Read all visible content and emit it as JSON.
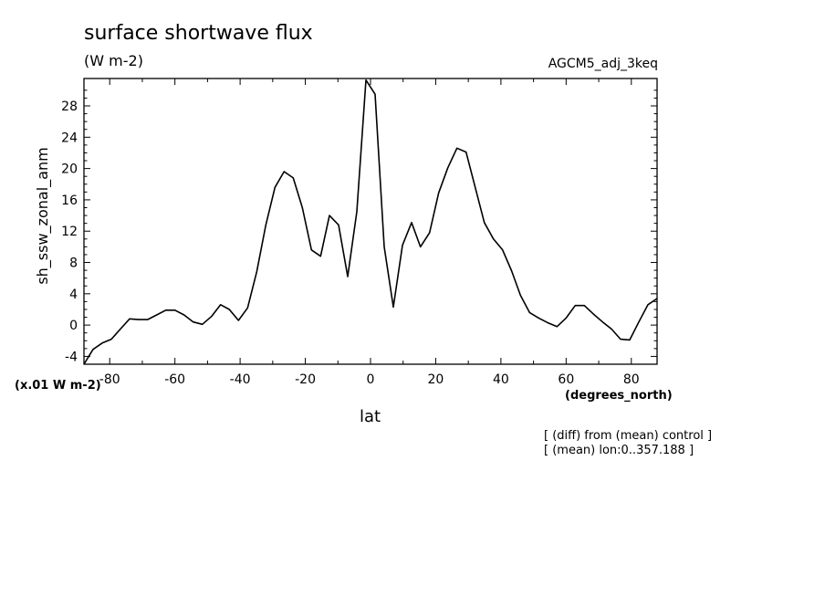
{
  "header": {
    "title": "surface shortwave flux",
    "units": "(W m-2)",
    "run_label": "AGCM5_adj_3keq"
  },
  "axes": {
    "y_scale_label": "(x.01 W m-2)",
    "x_unit_label": "(degrees_north)"
  },
  "notes": [
    "[ (diff) from (mean) control ]",
    "[ (mean) lon:0..357.188 ]"
  ],
  "chart_data": {
    "type": "line",
    "title": "surface shortwave flux",
    "xlabel": "lat",
    "ylabel": "sh_ssw_zonal_anm",
    "xlim": [
      -87.9,
      87.9
    ],
    "ylim": [
      -5,
      31.5
    ],
    "x_ticks": [
      -80,
      -60,
      -40,
      -20,
      0,
      20,
      40,
      60,
      80
    ],
    "x_tick_labels": [
      "-80",
      "-60",
      "-40",
      "-20",
      "0",
      "20",
      "40",
      "60",
      "80"
    ],
    "y_ticks": [
      -4,
      0,
      4,
      8,
      12,
      16,
      20,
      24,
      28
    ],
    "y_tick_labels": [
      "-4",
      "0",
      "4",
      "8",
      "12",
      "16",
      "20",
      "24",
      "28"
    ],
    "grid": false,
    "line_color": "#000000",
    "series": [
      {
        "x": [
          -87.9,
          -85.1,
          -82.3,
          -79.5,
          -76.7,
          -73.9,
          -71.2,
          -68.4,
          -65.6,
          -62.8,
          -60.0,
          -57.2,
          -54.4,
          -51.6,
          -48.8,
          -46.0,
          -43.3,
          -40.5,
          -37.7,
          -34.9,
          -32.1,
          -29.3,
          -26.5,
          -23.7,
          -20.9,
          -18.1,
          -15.3,
          -12.6,
          -9.8,
          -7.0,
          -4.2,
          -1.4,
          1.4,
          4.2,
          7.0,
          9.8,
          12.6,
          15.3,
          18.1,
          20.9,
          23.7,
          26.5,
          29.3,
          32.1,
          34.9,
          37.7,
          40.5,
          43.3,
          46.0,
          48.8,
          51.6,
          54.4,
          57.2,
          60.0,
          62.8,
          65.6,
          68.4,
          71.2,
          73.9,
          76.7,
          79.5,
          82.3,
          85.1,
          87.9
        ],
        "values": [
          -5.0,
          -3.1,
          -2.3,
          -1.8,
          -0.5,
          0.8,
          0.7,
          0.7,
          1.3,
          1.9,
          1.9,
          1.3,
          0.4,
          0.1,
          1.1,
          2.6,
          2.0,
          0.6,
          2.2,
          6.8,
          12.8,
          17.6,
          19.6,
          18.8,
          15.0,
          9.6,
          8.8,
          14.0,
          12.8,
          6.2,
          14.5,
          31.3,
          29.5,
          10.0,
          2.3,
          10.2,
          13.1,
          10.0,
          11.8,
          16.9,
          20.1,
          22.6,
          22.1,
          17.6,
          13.1,
          11.0,
          9.6,
          6.9,
          3.8,
          1.6,
          0.9,
          0.3,
          -0.2,
          0.9,
          2.5,
          2.5,
          1.4,
          0.4,
          -0.5,
          -1.8,
          -1.9,
          0.4,
          2.6,
          3.4
        ]
      }
    ]
  }
}
